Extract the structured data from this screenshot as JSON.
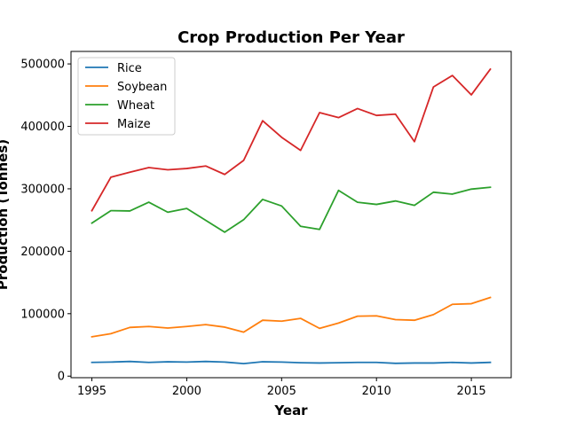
{
  "chart_data": {
    "type": "line",
    "title": "Crop Production Per Year",
    "xlabel": "Year",
    "ylabel": "Production (Tonnes)",
    "x": [
      1995,
      1996,
      1997,
      1998,
      1999,
      2000,
      2001,
      2002,
      2003,
      2004,
      2005,
      2006,
      2007,
      2008,
      2009,
      2010,
      2011,
      2012,
      2013,
      2014,
      2015,
      2016
    ],
    "xlim": [
      1993.9,
      2017.1
    ],
    "ylim": [
      -2500,
      520000
    ],
    "xticks": [
      1995,
      2000,
      2005,
      2010,
      2015
    ],
    "xtick_labels": [
      "1995",
      "2000",
      "2005",
      "2010",
      "2015"
    ],
    "yticks": [
      0,
      100000,
      200000,
      300000,
      400000,
      500000
    ],
    "ytick_labels": [
      "0",
      "100000",
      "200000",
      "300000",
      "400000",
      "500000"
    ],
    "grid": false,
    "legend": "top-left",
    "series": [
      {
        "name": "Rice",
        "color": "#1f77b4",
        "values": [
          22000,
          22500,
          23500,
          22000,
          23000,
          22500,
          23500,
          22500,
          20000,
          23000,
          22500,
          21500,
          21000,
          21500,
          22000,
          22000,
          20500,
          21000,
          21000,
          22000,
          21000,
          22000
        ]
      },
      {
        "name": "Soybean",
        "color": "#ff7f0e",
        "values": [
          63000,
          68000,
          78000,
          79500,
          77000,
          79500,
          82500,
          78500,
          70500,
          89500,
          88000,
          92500,
          76500,
          85000,
          96000,
          96500,
          90500,
          89500,
          98500,
          115000,
          116000,
          126000
        ]
      },
      {
        "name": "Wheat",
        "color": "#2ca02c",
        "values": [
          245000,
          265000,
          264500,
          278500,
          262500,
          268500,
          249500,
          230500,
          250500,
          283000,
          272500,
          240000,
          235000,
          297500,
          278500,
          275000,
          280500,
          273500,
          294500,
          291500,
          299500,
          302500
        ]
      },
      {
        "name": "Maize",
        "color": "#d62728",
        "values": [
          265000,
          318500,
          326500,
          334000,
          330500,
          332500,
          336500,
          323000,
          345500,
          409000,
          382500,
          361500,
          422000,
          414000,
          428500,
          417500,
          419500,
          375500,
          463000,
          481500,
          450500,
          491500
        ]
      }
    ]
  }
}
